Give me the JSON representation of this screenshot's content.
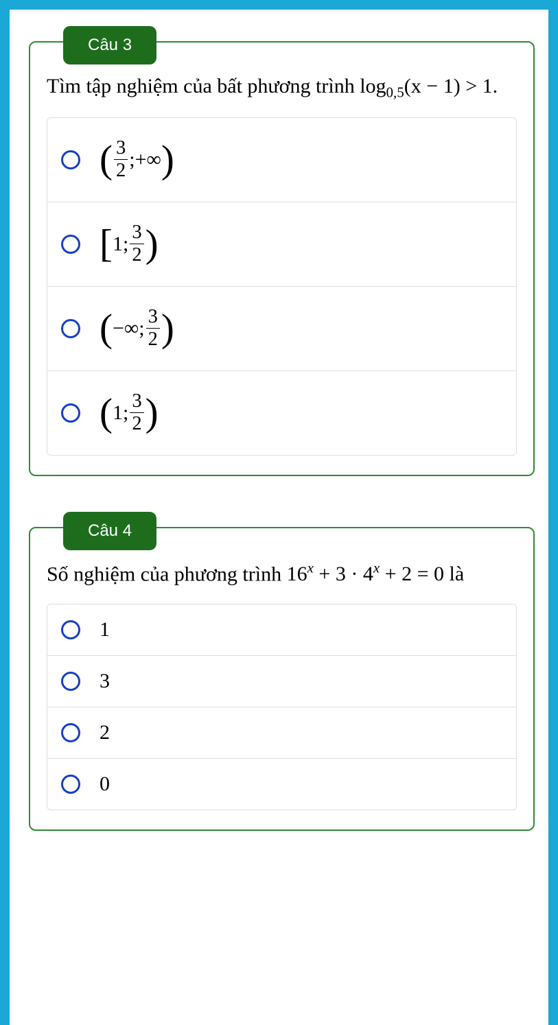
{
  "theme": {
    "outer_border_color": "#1aa8d6",
    "card_border_color": "#2e8b2e",
    "badge_bg": "#1d6d1d",
    "badge_fg": "#ffffff",
    "radio_border": "#1540c4",
    "option_divider": "#dddddd",
    "text_color": "#000000",
    "body_font": "Times New Roman",
    "badge_font": "Arial"
  },
  "q3": {
    "badge": "Câu 3",
    "prompt_prefix": "Tìm tập nghiệm của bất phương trình ",
    "prompt_math_log": "log",
    "prompt_math_sub": "0,5",
    "prompt_math_arg": "(x − 1) > 1.",
    "options": {
      "a": {
        "left": "(",
        "value1_num": "3",
        "value1_den": "2",
        "sep": "; ",
        "value2": "+∞",
        "right": ")"
      },
      "b": {
        "left": "[",
        "value1": "1",
        "sep": "; ",
        "value2_num": "3",
        "value2_den": "2",
        "right": ")"
      },
      "c": {
        "left": "(",
        "value1": "−∞",
        "sep": "; ",
        "value2_num": "3",
        "value2_den": "2",
        "right": ")"
      },
      "d": {
        "left": "(",
        "value1": "1",
        "sep": "; ",
        "value2_num": "3",
        "value2_den": "2",
        "right": ")"
      }
    }
  },
  "q4": {
    "badge": "Câu 4",
    "prompt_prefix": "Số nghiệm của phương trình ",
    "prompt_math_t1": "16",
    "prompt_math_exp": "x",
    "prompt_math_t2": " + 3 · 4",
    "prompt_math_t3": " + 2 = 0 là",
    "options": {
      "a": "1",
      "b": "3",
      "c": "2",
      "d": "0"
    }
  }
}
